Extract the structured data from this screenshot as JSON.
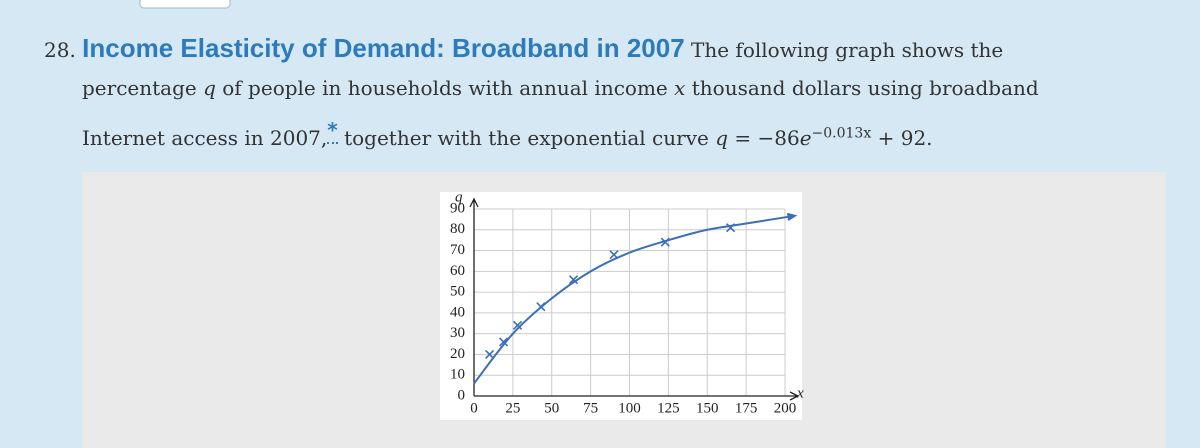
{
  "problem": {
    "number": "28.",
    "title": "Income Elasticity of Demand: Broadband in 2007",
    "body": [
      "The following graph shows the",
      "percentage ",
      "q",
      " of people in households with annual income ",
      "x",
      " thousand dollars using broadband",
      "Internet access in 2007,",
      "*",
      " together with the exponential curve ",
      "q",
      " = −86",
      "e",
      "−0.013x",
      " + 92."
    ]
  },
  "chart_data": {
    "type": "scatter",
    "x_label": "x",
    "y_label": "q",
    "xlim": [
      0,
      200
    ],
    "ylim": [
      0,
      90
    ],
    "xticks": [
      0,
      25,
      50,
      75,
      100,
      125,
      150,
      175,
      200
    ],
    "yticks": [
      0,
      10,
      20,
      30,
      40,
      50,
      60,
      70,
      80,
      90
    ],
    "grid": true,
    "series": [
      {
        "type": "line",
        "color": "#3b6fb6",
        "x": [
          0,
          25,
          50,
          75,
          100,
          125,
          150,
          175,
          200
        ],
        "values": [
          6,
          30,
          47,
          60,
          69,
          75,
          80,
          83,
          86
        ]
      },
      {
        "type": "scatter",
        "color": "#3b6fb6",
        "x": [
          10,
          19,
          28,
          43,
          64,
          90,
          123,
          165
        ],
        "values": [
          20,
          26,
          34,
          43,
          56,
          68,
          74,
          81
        ]
      }
    ]
  }
}
